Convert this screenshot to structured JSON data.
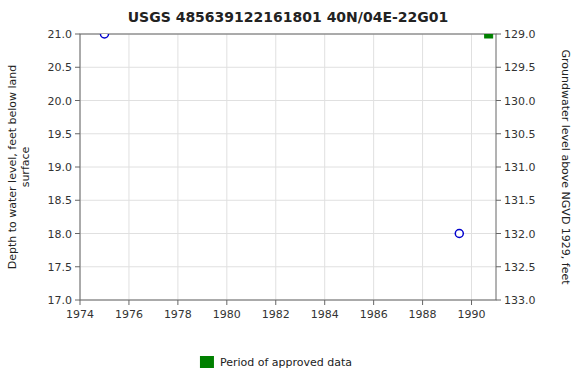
{
  "chart_data": {
    "type": "scatter",
    "title": "USGS 485639122161801 40N/04E-22G01",
    "y_label": "Depth to water level, feet below land\nsurface",
    "y2_label": "Groundwater level above NGVD 1929, feet",
    "xlim": [
      1974,
      1991
    ],
    "xticks": [
      1974,
      1976,
      1978,
      1980,
      1982,
      1984,
      1986,
      1988,
      1990
    ],
    "ylim": [
      17.0,
      21.0
    ],
    "yticks": [
      {
        "value": 17.0,
        "label": "17.0"
      },
      17.5,
      {
        "value": 18.0,
        "label": "18.0"
      },
      18.5,
      {
        "value": 19.0,
        "label": "19.0"
      },
      19.5,
      {
        "value": 20.0,
        "label": "20.0"
      },
      20.5,
      {
        "value": 21.0,
        "label": "21.0"
      }
    ],
    "y2lim": [
      133.0,
      129.0
    ],
    "y2ticks": [
      {
        "value": 133.0,
        "label": "133.0"
      },
      132.5,
      {
        "value": 132.0,
        "label": "132.0"
      },
      131.5,
      {
        "value": 131.0,
        "label": "131.0"
      },
      130.5,
      {
        "value": 130.0,
        "label": "130.0"
      },
      129.5,
      {
        "value": 129.0,
        "label": "129.0"
      }
    ],
    "grid": true,
    "legend": "bottom",
    "series": [
      {
        "color": "#0000cc",
        "marker": "open-circle",
        "x": [
          1975.0,
          1989.5
        ],
        "values": [
          21.0,
          18.0
        ]
      },
      {
        "name": "Period of approved data",
        "color": "#008000",
        "marker": "square",
        "x": [
          1990.7
        ],
        "values": [
          21.0
        ]
      }
    ]
  }
}
